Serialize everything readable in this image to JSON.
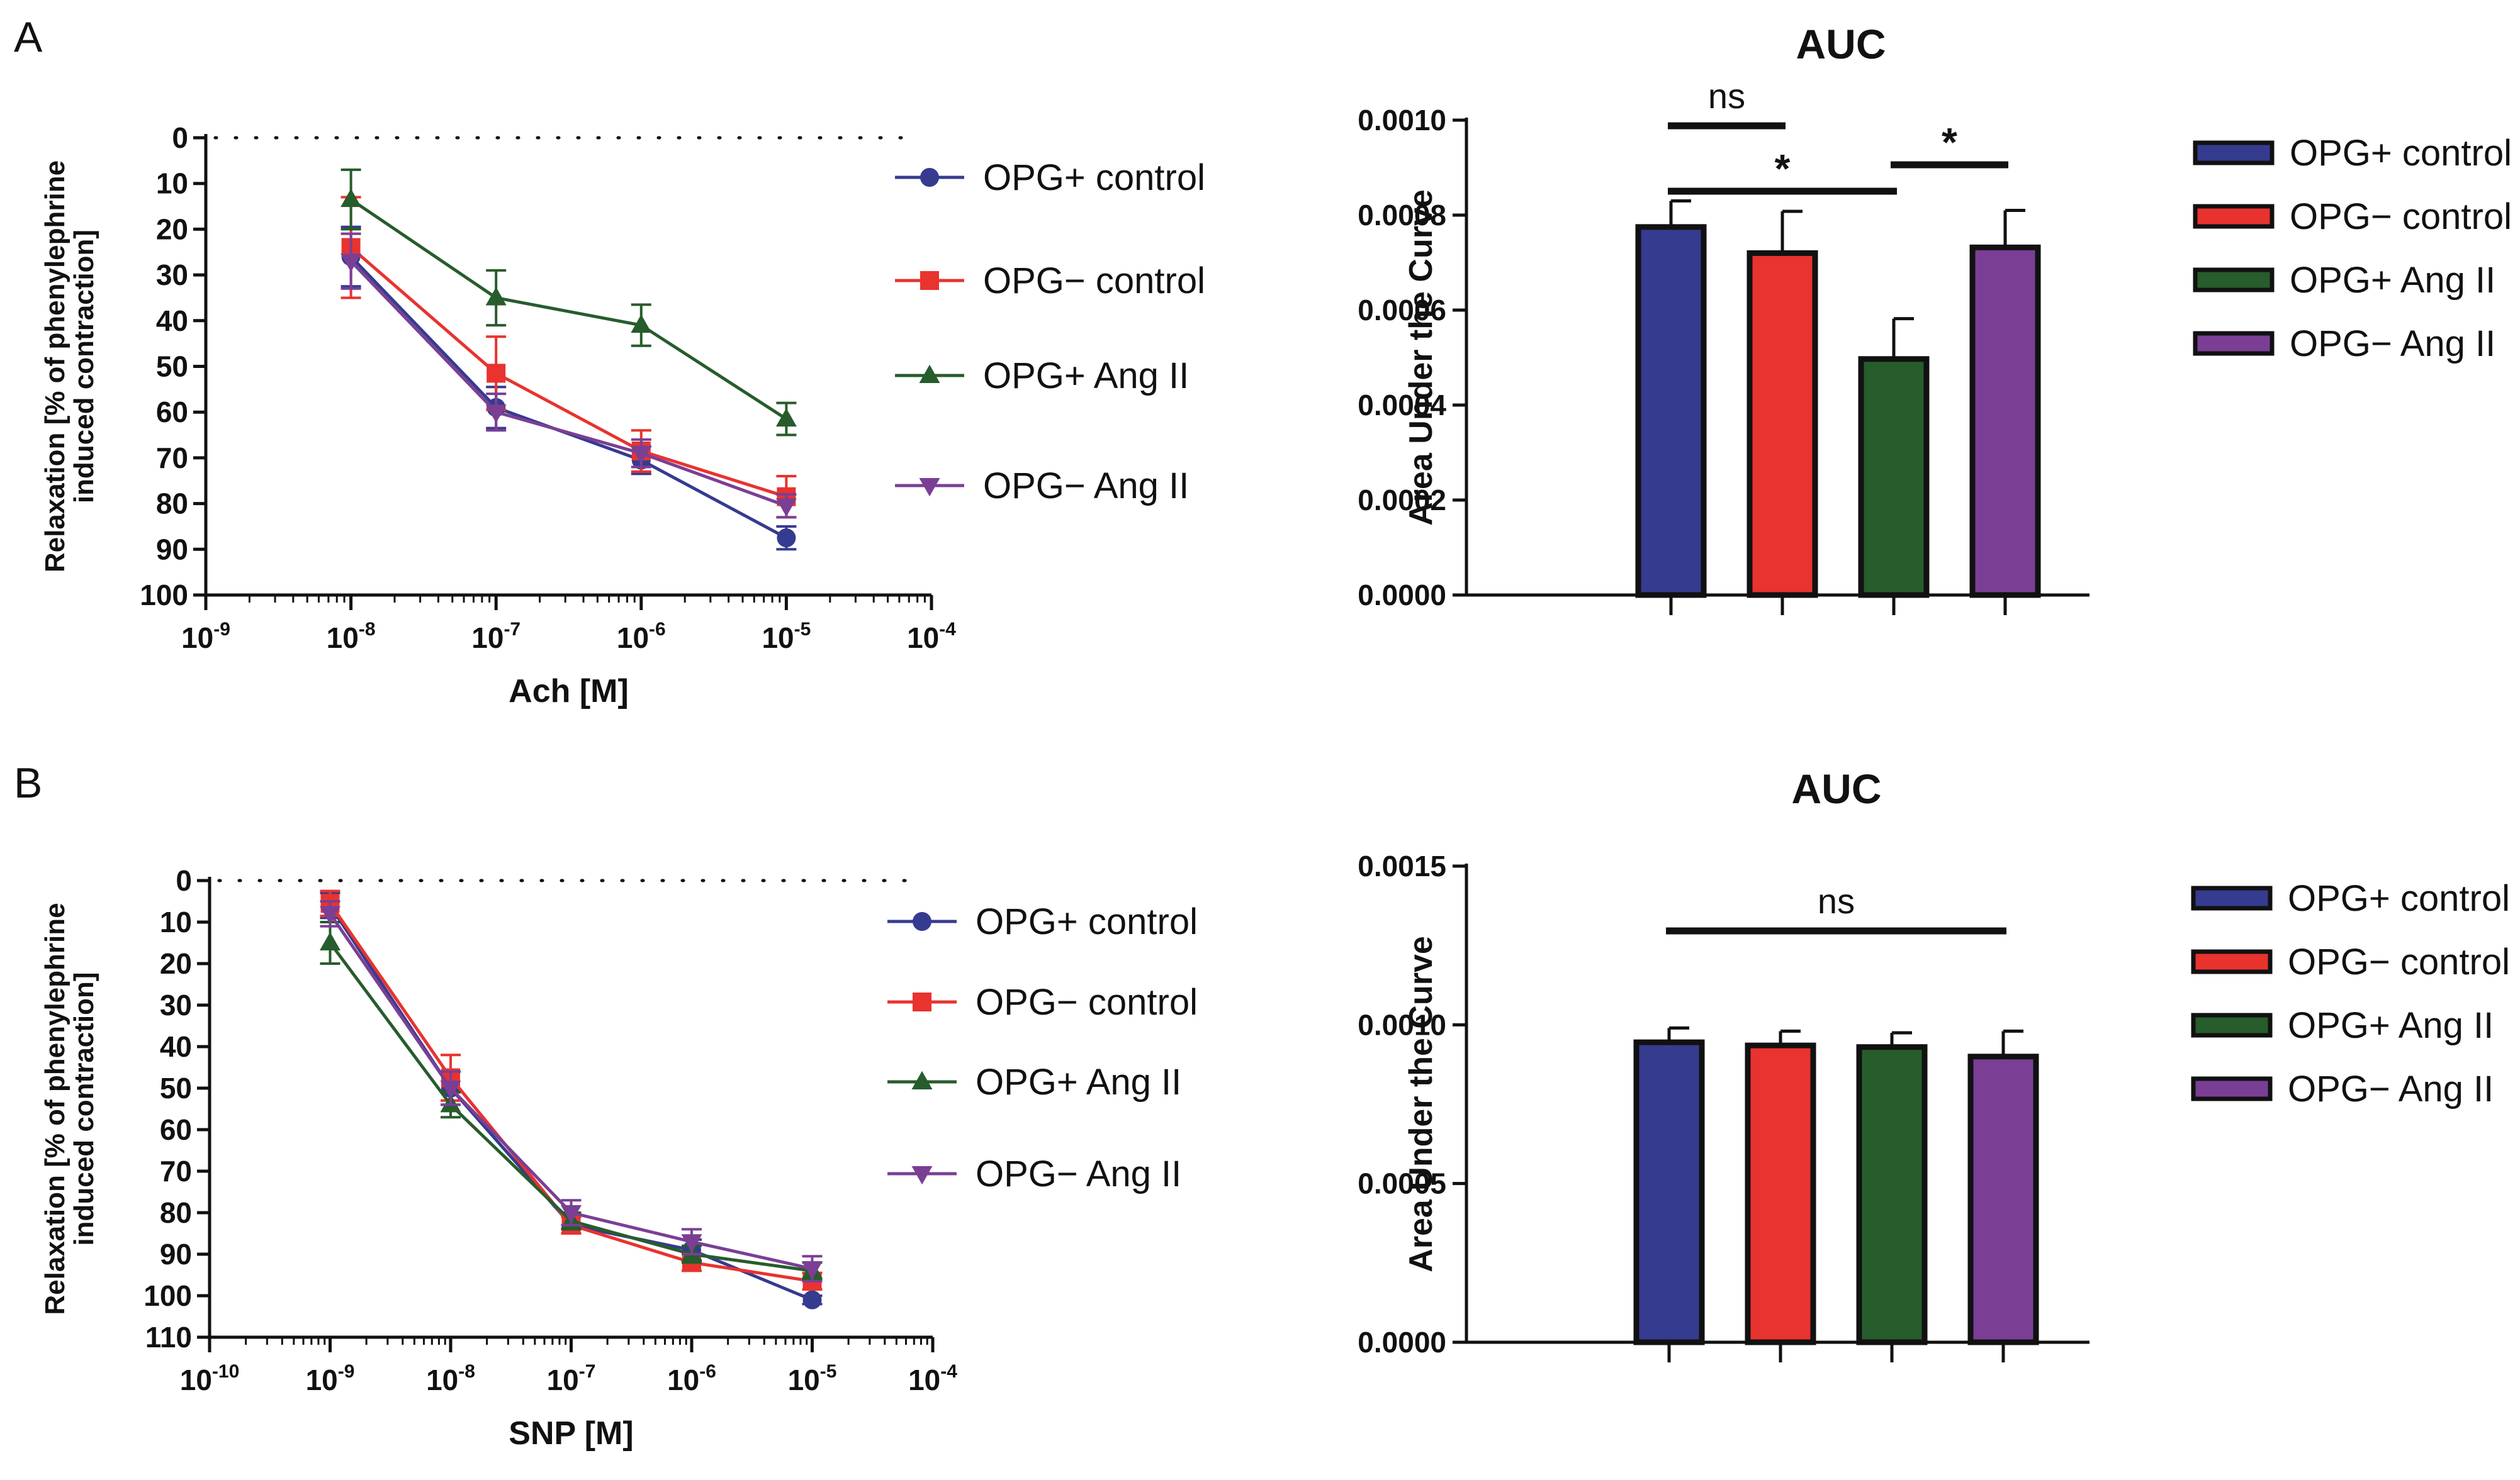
{
  "panels": {
    "a": "A",
    "b": "B"
  },
  "chart_data": [
    {
      "id": "A-curve",
      "type": "line",
      "title": "",
      "xlabel": "Ach [M]",
      "ylabel": [
        "Relaxation  [% of phenylephrine",
        "induced contraction]"
      ],
      "x_scale": "log",
      "x_exponents": [
        -9,
        -8,
        -7,
        -6,
        -5,
        -4
      ],
      "x_tick_labels": [
        "10-9",
        "10-8",
        "10-7",
        "10-6",
        "10-5",
        "10-4"
      ],
      "ylim": [
        0,
        100
      ],
      "y_inverted": true,
      "y_ticks": [
        0,
        10,
        20,
        30,
        40,
        50,
        60,
        70,
        80,
        90,
        100
      ],
      "reference_line_y": 0,
      "legend_position": "right",
      "series": [
        {
          "name": "OPG+ control",
          "color": "#353b8f",
          "marker": "circle",
          "x": [
            -8,
            -7,
            -6,
            -5
          ],
          "values": [
            26,
            59,
            70.5,
            87.5
          ],
          "errors": [
            6.5,
            4.5,
            3,
            2.5
          ]
        },
        {
          "name": "OPG− control",
          "color": "#e8332f",
          "marker": "square",
          "x": [
            -8,
            -7,
            -6,
            -5
          ],
          "values": [
            24,
            51.5,
            68.5,
            78.5
          ],
          "errors": [
            11,
            8,
            4.5,
            4.5
          ]
        },
        {
          "name": "OPG+ Ang II",
          "color": "#275c2c",
          "marker": "triangle-up",
          "x": [
            -8,
            -7,
            -6,
            -5
          ],
          "values": [
            13.5,
            35,
            41,
            61.5
          ],
          "errors": [
            6.5,
            6,
            4.5,
            3.5
          ]
        },
        {
          "name": "OPG− Ang II",
          "color": "#7a3f95",
          "marker": "triangle-down",
          "x": [
            -8,
            -7,
            -6,
            -5
          ],
          "values": [
            27,
            60,
            69,
            80.5
          ],
          "errors": [
            6,
            4,
            3,
            2.5
          ]
        }
      ]
    },
    {
      "id": "A-auc",
      "type": "bar",
      "title": "AUC",
      "xlabel": "",
      "ylabel": "Area Under the Curve",
      "categories": [
        "OPG+ control",
        "OPG− control",
        "OPG+ Ang II",
        "OPG− Ang II"
      ],
      "values": [
        0.000775,
        0.00072,
        0.000497,
        0.000732
      ],
      "errors": [
        5.5e-05,
        8.8e-05,
        8.5e-05,
        7.8e-05
      ],
      "colors": [
        "#353b8f",
        "#e8332f",
        "#275c2c",
        "#7a3f95"
      ],
      "ylim": [
        0,
        0.001
      ],
      "y_ticks": [
        0,
        0.0002,
        0.0004,
        0.0006,
        0.0008,
        0.001
      ],
      "y_tick_labels": [
        "0.0000",
        "0.0002",
        "0.0004",
        "0.0006",
        "0.0008",
        "0.0010"
      ],
      "legend_position": "right",
      "significance": [
        {
          "from": 0,
          "to": 1,
          "label": "ns"
        },
        {
          "from": 0,
          "to": 2,
          "label": "*"
        },
        {
          "from": 2,
          "to": 3,
          "label": "*"
        }
      ]
    },
    {
      "id": "B-curve",
      "type": "line",
      "title": "",
      "xlabel": "SNP [M]",
      "ylabel": [
        "Relaxation  [% of phenylephrine",
        "induced contraction]"
      ],
      "x_scale": "log",
      "x_exponents": [
        -10,
        -9,
        -8,
        -7,
        -6,
        -5,
        -4
      ],
      "x_tick_labels": [
        "10-10",
        "10-9",
        "10-8",
        "10-7",
        "10-6",
        "10-5",
        "10-4"
      ],
      "ylim": [
        0,
        110
      ],
      "y_inverted": true,
      "y_ticks": [
        0,
        10,
        20,
        30,
        40,
        50,
        60,
        70,
        80,
        90,
        100,
        110
      ],
      "reference_line_y": 0,
      "legend_position": "right",
      "series": [
        {
          "name": "OPG+ control",
          "color": "#353b8f",
          "marker": "circle",
          "x": [
            -9,
            -8,
            -7,
            -6,
            -5
          ],
          "values": [
            6,
            50,
            83,
            89,
            101
          ],
          "errors": [
            3,
            4,
            2,
            2.5,
            1
          ]
        },
        {
          "name": "OPG− control",
          "color": "#e8332f",
          "marker": "square",
          "x": [
            -9,
            -8,
            -7,
            -6,
            -5
          ],
          "values": [
            5.5,
            47.5,
            83,
            92,
            96.5
          ],
          "errors": [
            3,
            5.5,
            2,
            2,
            2
          ]
        },
        {
          "name": "OPG+ Ang II",
          "color": "#275c2c",
          "marker": "triangle-up",
          "x": [
            -9,
            -8,
            -7,
            -6,
            -5
          ],
          "values": [
            15,
            54,
            82,
            90,
            94
          ],
          "errors": [
            5,
            3,
            2,
            2,
            2
          ]
        },
        {
          "name": "OPG− Ang II",
          "color": "#7a3f95",
          "marker": "triangle-down",
          "x": [
            -9,
            -8,
            -7,
            -6,
            -5
          ],
          "values": [
            8,
            50,
            80,
            87,
            93.5
          ],
          "errors": [
            3,
            4,
            3,
            3,
            3
          ]
        }
      ]
    },
    {
      "id": "B-auc",
      "type": "bar",
      "title": "AUC",
      "xlabel": "",
      "ylabel": "Area Under the Curve",
      "categories": [
        "OPG+ control",
        "OPG− control",
        "OPG+ Ang II",
        "OPG− Ang II"
      ],
      "values": [
        0.000945,
        0.000935,
        0.00093,
        0.0009
      ],
      "errors": [
        4.5e-05,
        4.5e-05,
        4.5e-05,
        8e-05
      ],
      "colors": [
        "#353b8f",
        "#e8332f",
        "#275c2c",
        "#7a3f95"
      ],
      "ylim": [
        0,
        0.0015
      ],
      "y_ticks": [
        0,
        0.0005,
        0.001,
        0.0015
      ],
      "y_tick_labels": [
        "0.0000",
        "0.0005",
        "0.0010",
        "0.0015"
      ],
      "legend_position": "right",
      "significance": [
        {
          "from": 0,
          "to": 3,
          "label": "ns"
        }
      ]
    }
  ]
}
